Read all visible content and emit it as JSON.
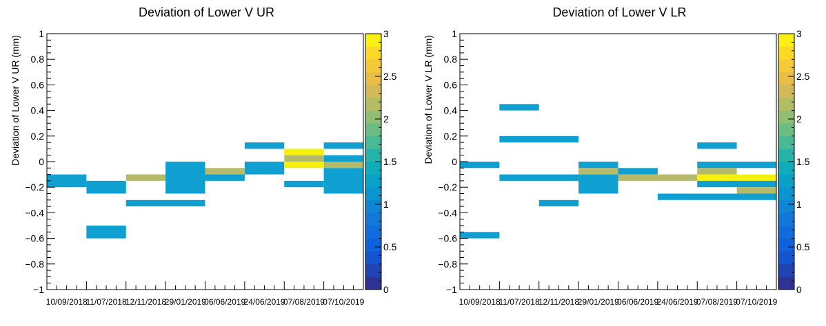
{
  "chart_data": [
    {
      "type": "heatmap",
      "title": "Deviation of Lower V UR",
      "xlabel": "",
      "ylabel": "Deviation of Lower V UR (mm)",
      "x_categories": [
        "10/09/2018",
        "11/07/2018",
        "12/11/2018",
        "29/01/2019",
        "06/06/2019",
        "24/06/2019",
        "07/08/2019",
        "07/10/2019"
      ],
      "ylim": [
        -1,
        1
      ],
      "y_ticks": [
        "1",
        "0.8",
        "0.6",
        "0.4",
        "0.2",
        "0",
        "−0.2",
        "−0.4",
        "−0.6",
        "−0.8",
        "−1"
      ],
      "y_tick_values": [
        1,
        0.8,
        0.6,
        0.4,
        0.2,
        0,
        -0.2,
        -0.4,
        -0.6,
        -0.8,
        -1
      ],
      "z_range": [
        0,
        3
      ],
      "colorbar_ticks": [
        "0",
        "0.5",
        "1",
        "1.5",
        "2",
        "2.5",
        "3"
      ],
      "colorbar_tick_values": [
        0,
        0.5,
        1,
        1.5,
        2,
        2.5,
        3
      ],
      "cells": [
        {
          "x0": 0,
          "x1": 1,
          "y0": -0.2,
          "y1": -0.1,
          "z": 1
        },
        {
          "x0": 1,
          "x1": 2,
          "y0": -0.25,
          "y1": -0.15,
          "z": 1
        },
        {
          "x0": 1,
          "x1": 2,
          "y0": -0.6,
          "y1": -0.5,
          "z": 1
        },
        {
          "x0": 2,
          "x1": 3,
          "y0": -0.15,
          "y1": -0.1,
          "z": 2
        },
        {
          "x0": 2,
          "x1": 4,
          "y0": -0.35,
          "y1": -0.3,
          "z": 1
        },
        {
          "x0": 3,
          "x1": 4,
          "y0": -0.25,
          "y1": 0,
          "z": 1
        },
        {
          "x0": 4,
          "x1": 5,
          "y0": -0.1,
          "y1": -0.05,
          "z": 2
        },
        {
          "x0": 4,
          "x1": 5,
          "y0": -0.15,
          "y1": -0.1,
          "z": 1
        },
        {
          "x0": 5,
          "x1": 6,
          "y0": -0.1,
          "y1": 0,
          "z": 1
        },
        {
          "x0": 5,
          "x1": 6,
          "y0": 0.1,
          "y1": 0.15,
          "z": 1
        },
        {
          "x0": 6,
          "x1": 7,
          "y0": 0.05,
          "y1": 0.1,
          "z": 3
        },
        {
          "x0": 6,
          "x1": 7,
          "y0": 0,
          "y1": 0.05,
          "z": 2
        },
        {
          "x0": 6,
          "x1": 7,
          "y0": -0.05,
          "y1": 0,
          "z": 3
        },
        {
          "x0": 6,
          "x1": 7,
          "y0": -0.2,
          "y1": -0.15,
          "z": 1
        },
        {
          "x0": 7,
          "x1": 8,
          "y0": 0.1,
          "y1": 0.15,
          "z": 1
        },
        {
          "x0": 7,
          "x1": 8,
          "y0": 0,
          "y1": 0.05,
          "z": 1
        },
        {
          "x0": 7,
          "x1": 8,
          "y0": -0.05,
          "y1": 0,
          "z": 2
        },
        {
          "x0": 7,
          "x1": 8,
          "y0": -0.25,
          "y1": -0.05,
          "z": 1
        }
      ]
    },
    {
      "type": "heatmap",
      "title": "Deviation of Lower V LR",
      "xlabel": "",
      "ylabel": "Deviation of Lower V LR (mm)",
      "x_categories": [
        "10/09/2018",
        "11/07/2018",
        "12/11/2018",
        "29/01/2019",
        "06/06/2019",
        "24/06/2019",
        "07/08/2019",
        "07/10/2019"
      ],
      "ylim": [
        -1,
        1
      ],
      "y_ticks": [
        "1",
        "0.8",
        "0.6",
        "0.4",
        "0.2",
        "0",
        "−0.2",
        "−0.4",
        "−0.6",
        "−0.8",
        "−1"
      ],
      "y_tick_values": [
        1,
        0.8,
        0.6,
        0.4,
        0.2,
        0,
        -0.2,
        -0.4,
        -0.6,
        -0.8,
        -1
      ],
      "z_range": [
        0,
        3
      ],
      "colorbar_ticks": [
        "0",
        "0.5",
        "1",
        "1.5",
        "2",
        "2.5",
        "3"
      ],
      "colorbar_tick_values": [
        0,
        0.5,
        1,
        1.5,
        2,
        2.5,
        3
      ],
      "cells": [
        {
          "x0": 0,
          "x1": 1,
          "y0": -0.05,
          "y1": 0,
          "z": 1
        },
        {
          "x0": 0,
          "x1": 1,
          "y0": -0.6,
          "y1": -0.55,
          "z": 1
        },
        {
          "x0": 1,
          "x1": 2,
          "y0": 0.4,
          "y1": 0.45,
          "z": 1
        },
        {
          "x0": 1,
          "x1": 3,
          "y0": 0.15,
          "y1": 0.2,
          "z": 1
        },
        {
          "x0": 1,
          "x1": 3,
          "y0": -0.15,
          "y1": -0.1,
          "z": 1
        },
        {
          "x0": 2,
          "x1": 3,
          "y0": -0.35,
          "y1": -0.3,
          "z": 1
        },
        {
          "x0": 3,
          "x1": 4,
          "y0": -0.05,
          "y1": 0,
          "z": 1
        },
        {
          "x0": 3,
          "x1": 4,
          "y0": -0.1,
          "y1": -0.05,
          "z": 2
        },
        {
          "x0": 3,
          "x1": 4,
          "y0": -0.25,
          "y1": -0.1,
          "z": 1
        },
        {
          "x0": 4,
          "x1": 5,
          "y0": -0.1,
          "y1": -0.05,
          "z": 1
        },
        {
          "x0": 4,
          "x1": 6,
          "y0": -0.15,
          "y1": -0.1,
          "z": 2
        },
        {
          "x0": 5,
          "x1": 8,
          "y0": -0.3,
          "y1": -0.25,
          "z": 1
        },
        {
          "x0": 6,
          "x1": 7,
          "y0": 0.1,
          "y1": 0.15,
          "z": 1
        },
        {
          "x0": 6,
          "x1": 8,
          "y0": -0.05,
          "y1": 0,
          "z": 1
        },
        {
          "x0": 6,
          "x1": 7,
          "y0": -0.1,
          "y1": -0.05,
          "z": 2
        },
        {
          "x0": 6,
          "x1": 8,
          "y0": -0.15,
          "y1": -0.1,
          "z": 3
        },
        {
          "x0": 6,
          "x1": 8,
          "y0": -0.2,
          "y1": -0.15,
          "z": 1
        },
        {
          "x0": 7,
          "x1": 8,
          "y0": -0.25,
          "y1": -0.2,
          "z": 2
        }
      ]
    }
  ]
}
